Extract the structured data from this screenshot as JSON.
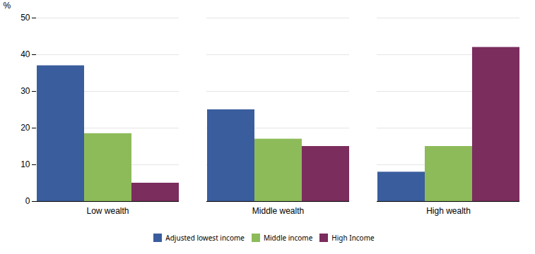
{
  "chart_data": {
    "type": "bar",
    "categories": [
      "Low wealth",
      "Middle wealth",
      "High wealth"
    ],
    "series": [
      {
        "name": "Adjusted lowest income",
        "color": "#3A5D9E",
        "values": [
          37.0,
          25.0,
          8.0
        ]
      },
      {
        "name": "Middle income",
        "color": "#8DBB5A",
        "values": [
          18.5,
          17.0,
          15.0
        ]
      },
      {
        "name": "High Income",
        "color": "#7B2D5E",
        "values": [
          5.0,
          15.0,
          42.0
        ]
      }
    ],
    "ylabel": "%",
    "ylim": [
      0,
      50
    ],
    "yticks": [
      0,
      10,
      20,
      30,
      40,
      50
    ],
    "grid": true,
    "legend": "bottom"
  }
}
